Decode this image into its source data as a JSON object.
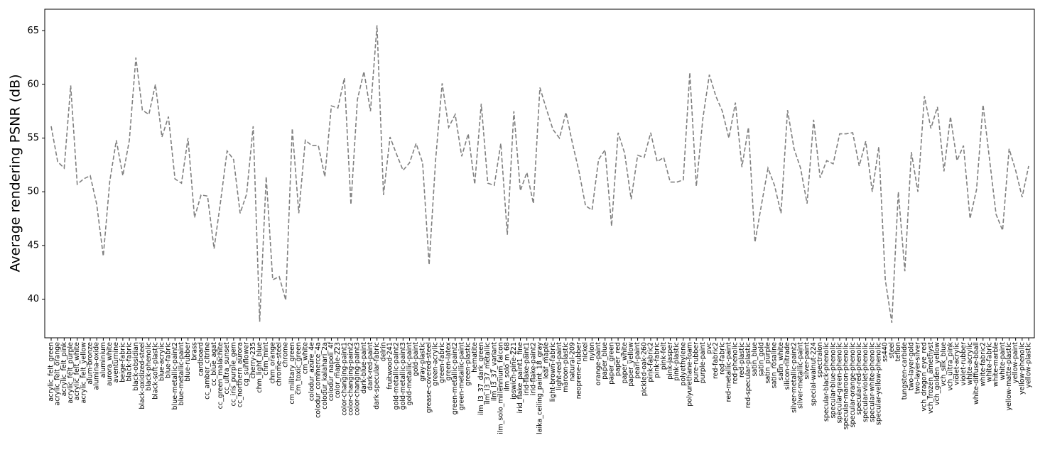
{
  "chart_data": {
    "type": "line",
    "y_label": "Average rendering PSNR (dB)",
    "categories": [
      "acrylic_felt_green",
      "acrylic_felt_orange",
      "acrylic_felt_pink",
      "acrylic_felt_purple",
      "acrylic_felt_white",
      "acrylic_felt_yellow",
      "alum-bronze",
      "alumina-oxide",
      "aluminium",
      "aurora_white",
      "aventurnine",
      "beige-fabric",
      "black-fabric",
      "black-obsidian",
      "black-oxidized-steel",
      "black-phenolic",
      "black-soft-plastic",
      "blue-acrylic",
      "blue-fabric",
      "blue-metallic-paint2",
      "blue-metallic-paint",
      "blue-rubber",
      "brass",
      "cardboard",
      "cc_amber_citrine",
      "cc_blue_agat",
      "cc_green_malachite",
      "cc_ultra_sunset",
      "cc_iris_purple_gem",
      "cc_northern_aurora",
      "cg_sunflower",
      "cherry-235",
      "chm_light_blue",
      "chm_mint",
      "chm_orange",
      "chrome-steel",
      "chrome",
      "cm_military_green",
      "cm_toxic_green",
      "cm_white",
      "colodur_azure_4e",
      "colodur_commerce_4a",
      "colodur_kalahari_2a",
      "colodur_napoli_4f",
      "color_maple-223",
      "color-changing-paint1",
      "color-changing-paint2",
      "color-changing-paint3",
      "dark-blue-paint",
      "dark-red-paint",
      "dark-specular-fabric",
      "delrin",
      "fruitwood-241",
      "gold-metallic-paint2",
      "gold-metallic-paint3",
      "gold-metallic-paint",
      "gold-paint",
      "gray-plastic",
      "grease-covered-steel",
      "green-acrylic",
      "green-fabric",
      "green-latex",
      "green-metallic-paint2",
      "green-metallic-paint",
      "green-plastic",
      "hematite",
      "ilm_l3_37_dark_green",
      "ilm_l3_37_metallic",
      "ilm_l3_37_variant",
      "ilm_solo_millennium_falcon",
      "ilm_solo_m_68",
      "ipswich-pine-221",
      "irid_flake_paint1_fine",
      "irid-flake-paint1",
      "irid-flake-paint2",
      "laika_ceiling_paint_18_gray",
      "leaf_maple",
      "light-brown-fabric",
      "light-red-paint",
      "maroon-plastic",
      "natural-209",
      "neoprene-rubber",
      "nickel",
      "nylon",
      "orange-paint",
      "paper_blue",
      "paper_green",
      "paper_red",
      "paper_white",
      "paper_yellow",
      "pearl-paint",
      "pickled-oak-260",
      "pink-fabric2",
      "pink-fabric",
      "pink-felt",
      "pink-jasper",
      "pink-plastic",
      "polyethylene",
      "polyurethane-foam",
      "pure-rubber",
      "purple-paint",
      "pvc",
      "red-fabric2",
      "red-fabric",
      "red-metallic-paint",
      "red-phenolic",
      "red-plastic",
      "red-specular-plastic",
      "satin_blue",
      "satin_gold",
      "satin_purple",
      "satin_rosaline",
      "satin_white",
      "silicon-nitrade",
      "silver-metallic-paint2",
      "silver-metallic-paint",
      "silver-paint",
      "special-walnut-224",
      "spectralon",
      "specular-black-phenolic",
      "specular-blue-phenolic",
      "specular-green-phenolic",
      "specular-maroon-phenolic",
      "specular-orange-phenolic",
      "specular-red-phenolic",
      "specular-violet-phenolic",
      "specular-white-phenolic",
      "specular-yellow-phenolic",
      "ss440",
      "steel",
      "teflon",
      "tungsten-carbide",
      "two-layer-gold",
      "two-layer-silver",
      "vch_dragon_eye_red",
      "vch_frozen_amethyst",
      "vch_golden_yellow",
      "vch_silk_blue",
      "vch_ultra_pink",
      "violet-acrylic",
      "violet-rubber",
      "white-acrylic",
      "white-diffuse-bball",
      "white-fabric2",
      "white-fabric",
      "white-marble",
      "white-paint",
      "yellow-matte-plastic",
      "yellow-paint",
      "yellow-phenolic",
      "yellow-plastic"
    ],
    "series": [
      {
        "color": "#808080",
        "dash": "6,3",
        "values": [
          56.1,
          52.8,
          52.2,
          59.9,
          50.7,
          51.2,
          51.5,
          48.8,
          44.0,
          51.0,
          54.8,
          51.5,
          54.8,
          62.5,
          57.6,
          57.2,
          60.0,
          55.1,
          57.0,
          51.2,
          50.8,
          55.0,
          47.6,
          49.7,
          49.6,
          44.7,
          49.1,
          53.8,
          53.0,
          48.0,
          49.8,
          56.1,
          37.9,
          51.4,
          41.8,
          42.1,
          39.9,
          55.9,
          48.0,
          54.8,
          54.3,
          54.3,
          51.4,
          58.0,
          57.8,
          60.6,
          48.8,
          58.6,
          61.2,
          57.5,
          65.5,
          49.7,
          55.1,
          53.5,
          52.0,
          52.7,
          54.5,
          52.7,
          43.2,
          53.0,
          60.1,
          56.0,
          57.2,
          53.3,
          55.4,
          50.7,
          58.2,
          50.8,
          50.6,
          54.5,
          46.0,
          57.5,
          50.1,
          51.8,
          48.9,
          59.7,
          57.7,
          55.8,
          55.0,
          57.4,
          54.5,
          51.9,
          48.7,
          48.3,
          53.0,
          53.9,
          46.8,
          55.5,
          53.6,
          49.3,
          53.4,
          53.2,
          55.5,
          52.8,
          53.2,
          50.9,
          50.9,
          51.1,
          61.1,
          50.5,
          56.8,
          60.9,
          58.9,
          57.5,
          55.0,
          58.3,
          52.3,
          56.0,
          45.3,
          48.8,
          52.2,
          50.6,
          48.0,
          57.6,
          54.0,
          52.2,
          48.9,
          56.7,
          51.3,
          52.9,
          52.6,
          55.4,
          55.4,
          55.5,
          52.4,
          54.7,
          50.0,
          54.2,
          41.8,
          37.8,
          50.0,
          42.6,
          53.7,
          50.0,
          58.9,
          55.9,
          57.9,
          51.9,
          57.0,
          52.9,
          54.3,
          47.5,
          50.2,
          58.1,
          53.0,
          47.9,
          46.4,
          54.0,
          52.0,
          49.5,
          52.4
        ]
      }
    ],
    "ylim": [
      36.4,
      67.0
    ],
    "yticks": [
      40,
      45,
      50,
      55,
      60,
      65
    ]
  }
}
